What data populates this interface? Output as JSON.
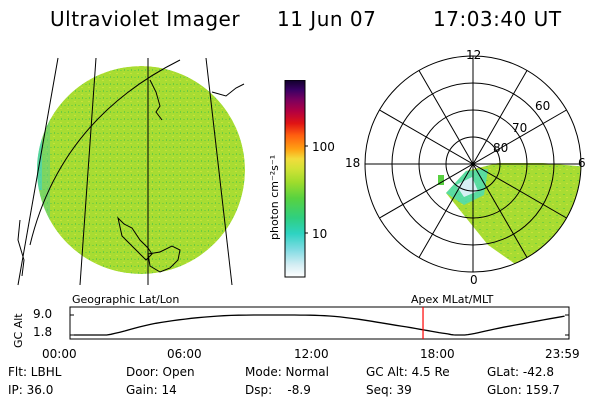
{
  "header": {
    "title": "Ultraviolet Imager",
    "date": "11 Jun 07",
    "time": "17:03:40 UT"
  },
  "colors": {
    "aurora_fill": "#aade30",
    "aurora_speckle": "#60c840",
    "low_flux": "#40e0d0",
    "cursor_red": "#ff0000"
  },
  "colorbar": {
    "label": "photon cm⁻²s⁻¹",
    "ticks": [
      "100",
      "10"
    ],
    "palette": [
      "#ffffff",
      "#d8eef4",
      "#90dde6",
      "#3fd6c8",
      "#2ccf8e",
      "#42d04c",
      "#82d82c",
      "#bde030",
      "#e8e040",
      "#fbd83a",
      "#ff9c10",
      "#ff5a10",
      "#e01010",
      "#b8003a",
      "#80005c",
      "#3b0060",
      "#10002c"
    ]
  },
  "polar": {
    "hour_labels": {
      "noon": "12",
      "dusk": "18",
      "dawn": "6",
      "midnight": "0"
    },
    "lat_labels": [
      "60",
      "70",
      "80"
    ]
  },
  "orbit": {
    "ylabel": "GC Alt",
    "yticks": [
      "9.0",
      "1.8"
    ],
    "left_title": "Geographic Lat/Lon",
    "right_title": "Apex MLat/MLT",
    "xticks": [
      "00:00",
      "06:00",
      "12:00",
      "18:00",
      "23:59"
    ],
    "cursor_time_hours": 17.06,
    "altitude_profile": [
      {
        "t": 0.0,
        "alt": 1.8
      },
      {
        "t": 1.6,
        "alt": 1.8
      },
      {
        "t": 4.0,
        "alt": 6.0
      },
      {
        "t": 7.0,
        "alt": 8.6
      },
      {
        "t": 10.5,
        "alt": 9.0
      },
      {
        "t": 13.0,
        "alt": 8.3
      },
      {
        "t": 16.0,
        "alt": 5.0
      },
      {
        "t": 18.0,
        "alt": 2.5
      },
      {
        "t": 19.1,
        "alt": 1.8
      },
      {
        "t": 21.0,
        "alt": 4.6
      },
      {
        "t": 23.98,
        "alt": 8.6
      }
    ]
  },
  "info": {
    "flt": "Flt: LBHL",
    "ip": "IP: 36.0",
    "door": "Door: Open",
    "gain": "Gain: 14",
    "mode": "Mode: Normal",
    "dsp": "Dsp:    -8.9",
    "gcalt": "GC Alt: 4.5 Re",
    "seq": "Seq: 39",
    "glat": "GLat: -42.8",
    "glon": "GLon: 159.7"
  }
}
